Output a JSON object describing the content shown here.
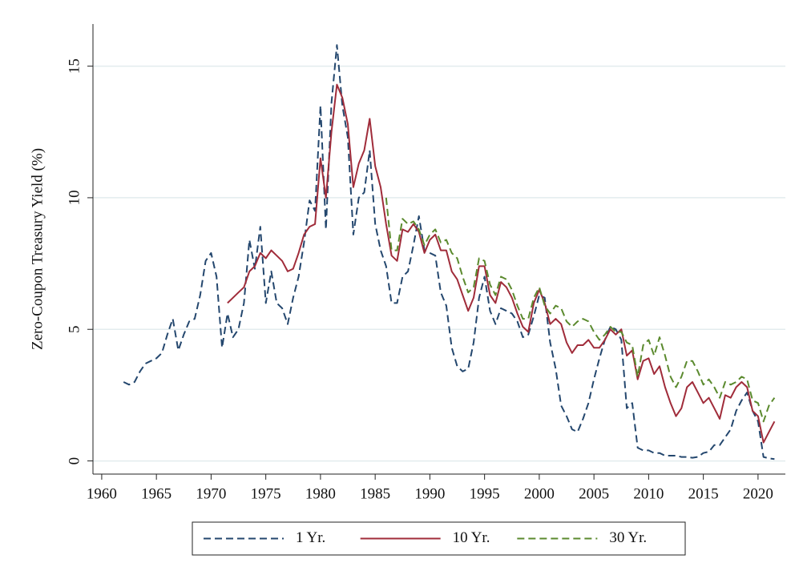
{
  "chart_data": {
    "type": "line",
    "y_label": "Zero-Coupon Treasury Yield (%)",
    "x": [
      1962,
      1962.5,
      1963,
      1963.5,
      1964,
      1964.5,
      1965,
      1965.5,
      1966,
      1966.5,
      1967,
      1967.5,
      1968,
      1968.5,
      1969,
      1969.5,
      1970,
      1970.5,
      1971,
      1971.5,
      1972,
      1972.5,
      1973,
      1973.5,
      1974,
      1974.5,
      1975,
      1975.5,
      1976,
      1976.5,
      1977,
      1977.5,
      1978,
      1978.5,
      1979,
      1979.5,
      1980,
      1980.5,
      1981,
      1981.5,
      1982,
      1982.5,
      1983,
      1983.5,
      1984,
      1984.5,
      1985,
      1985.5,
      1986,
      1986.5,
      1987,
      1987.5,
      1988,
      1988.5,
      1989,
      1989.5,
      1990,
      1990.5,
      1991,
      1991.5,
      1992,
      1992.5,
      1993,
      1993.5,
      1994,
      1994.5,
      1995,
      1995.5,
      1996,
      1996.5,
      1997,
      1997.5,
      1998,
      1998.5,
      1999,
      1999.5,
      2000,
      2000.5,
      2001,
      2001.5,
      2002,
      2002.5,
      2003,
      2003.5,
      2004,
      2004.5,
      2005,
      2005.5,
      2006,
      2006.5,
      2007,
      2007.5,
      2008,
      2008.5,
      2009,
      2009.5,
      2010,
      2010.5,
      2011,
      2011.5,
      2012,
      2012.5,
      2013,
      2013.5,
      2014,
      2014.5,
      2015,
      2015.5,
      2016,
      2016.5,
      2017,
      2017.5,
      2018,
      2018.5,
      2019,
      2019.5,
      2020,
      2020.5,
      2021,
      2021.5
    ],
    "series": [
      {
        "name": "1 Yr.",
        "color": "#24476e",
        "dashed": true,
        "values": [
          3.0,
          2.9,
          3.0,
          3.4,
          3.7,
          3.8,
          3.9,
          4.1,
          4.8,
          5.4,
          4.2,
          4.8,
          5.3,
          5.4,
          6.3,
          7.6,
          7.9,
          7.0,
          4.3,
          5.6,
          4.7,
          5.0,
          6.0,
          8.4,
          7.3,
          8.9,
          6.0,
          7.2,
          6.0,
          5.8,
          5.2,
          6.2,
          7.0,
          8.3,
          9.9,
          9.5,
          13.5,
          8.8,
          13.6,
          15.8,
          13.5,
          12.3,
          8.6,
          10.0,
          10.2,
          11.8,
          9.0,
          8.0,
          7.4,
          6.0,
          6.0,
          7.0,
          7.2,
          8.2,
          9.3,
          8.0,
          7.9,
          7.8,
          6.4,
          5.9,
          4.3,
          3.6,
          3.4,
          3.5,
          4.5,
          6.2,
          7.0,
          5.7,
          5.2,
          5.8,
          5.7,
          5.6,
          5.3,
          4.7,
          4.8,
          5.5,
          6.3,
          6.2,
          4.5,
          3.5,
          2.1,
          1.7,
          1.2,
          1.1,
          1.6,
          2.2,
          3.1,
          3.9,
          4.6,
          5.1,
          5.0,
          4.6,
          2.0,
          2.2,
          0.5,
          0.4,
          0.4,
          0.3,
          0.3,
          0.2,
          0.2,
          0.2,
          0.15,
          0.15,
          0.12,
          0.15,
          0.3,
          0.35,
          0.6,
          0.6,
          0.9,
          1.2,
          1.9,
          2.3,
          2.6,
          1.9,
          1.5,
          0.15,
          0.1,
          0.07
        ]
      },
      {
        "name": "10 Yr.",
        "color": "#a02c3a",
        "dashed": false,
        "values": [
          null,
          null,
          null,
          null,
          null,
          null,
          null,
          null,
          null,
          null,
          null,
          null,
          null,
          null,
          null,
          null,
          null,
          null,
          null,
          6.0,
          6.2,
          6.4,
          6.6,
          7.2,
          7.4,
          7.9,
          7.7,
          8.0,
          7.8,
          7.6,
          7.2,
          7.3,
          7.9,
          8.6,
          8.9,
          9.0,
          11.5,
          10.0,
          12.5,
          14.3,
          13.8,
          12.8,
          10.4,
          11.3,
          11.8,
          13.0,
          11.2,
          10.4,
          9.0,
          7.8,
          7.6,
          8.8,
          8.7,
          9.0,
          8.7,
          7.9,
          8.4,
          8.6,
          8.0,
          8.0,
          7.2,
          6.9,
          6.3,
          5.7,
          6.2,
          7.4,
          7.4,
          6.3,
          6.0,
          6.8,
          6.6,
          6.2,
          5.6,
          5.1,
          4.9,
          6.0,
          6.5,
          6.0,
          5.2,
          5.4,
          5.2,
          4.5,
          4.1,
          4.4,
          4.4,
          4.6,
          4.3,
          4.3,
          4.6,
          5.0,
          4.8,
          5.0,
          4.0,
          4.2,
          3.1,
          3.8,
          3.9,
          3.3,
          3.6,
          2.8,
          2.2,
          1.7,
          2.0,
          2.8,
          3.0,
          2.6,
          2.2,
          2.4,
          2.0,
          1.6,
          2.5,
          2.4,
          2.8,
          3.0,
          2.8,
          1.9,
          1.7,
          0.7,
          1.1,
          1.5
        ]
      },
      {
        "name": "30 Yr.",
        "color": "#5b8a2e",
        "dashed": true,
        "values": [
          null,
          null,
          null,
          null,
          null,
          null,
          null,
          null,
          null,
          null,
          null,
          null,
          null,
          null,
          null,
          null,
          null,
          null,
          null,
          null,
          null,
          null,
          null,
          null,
          null,
          null,
          null,
          null,
          null,
          null,
          null,
          null,
          null,
          null,
          null,
          null,
          null,
          null,
          null,
          null,
          null,
          null,
          null,
          null,
          null,
          null,
          null,
          null,
          10.0,
          8.0,
          8.0,
          9.2,
          9.0,
          9.1,
          8.8,
          8.2,
          8.6,
          8.8,
          8.3,
          8.4,
          7.9,
          7.7,
          7.0,
          6.4,
          6.6,
          7.7,
          7.6,
          6.7,
          6.3,
          7.0,
          6.9,
          6.5,
          5.9,
          5.4,
          5.4,
          6.2,
          6.6,
          5.9,
          5.6,
          5.9,
          5.8,
          5.3,
          5.1,
          5.3,
          5.4,
          5.3,
          4.9,
          4.6,
          4.8,
          5.1,
          4.9,
          4.9,
          4.5,
          4.4,
          3.2,
          4.4,
          4.6,
          4.0,
          4.7,
          4.0,
          3.2,
          2.8,
          3.2,
          3.8,
          3.8,
          3.4,
          2.9,
          3.1,
          2.8,
          2.4,
          3.0,
          2.9,
          3.0,
          3.2,
          3.1,
          2.3,
          2.2,
          1.5,
          2.1,
          2.4
        ]
      }
    ],
    "xlim": [
      1959.2,
      2022.5
    ],
    "ylim": [
      -0.5,
      16.6
    ],
    "xticks": [
      1960,
      1965,
      1970,
      1975,
      1980,
      1985,
      1990,
      1995,
      2000,
      2005,
      2010,
      2015,
      2020
    ],
    "yticks": [
      0,
      5,
      10,
      15
    ],
    "grid": true,
    "legend": "bottom"
  }
}
